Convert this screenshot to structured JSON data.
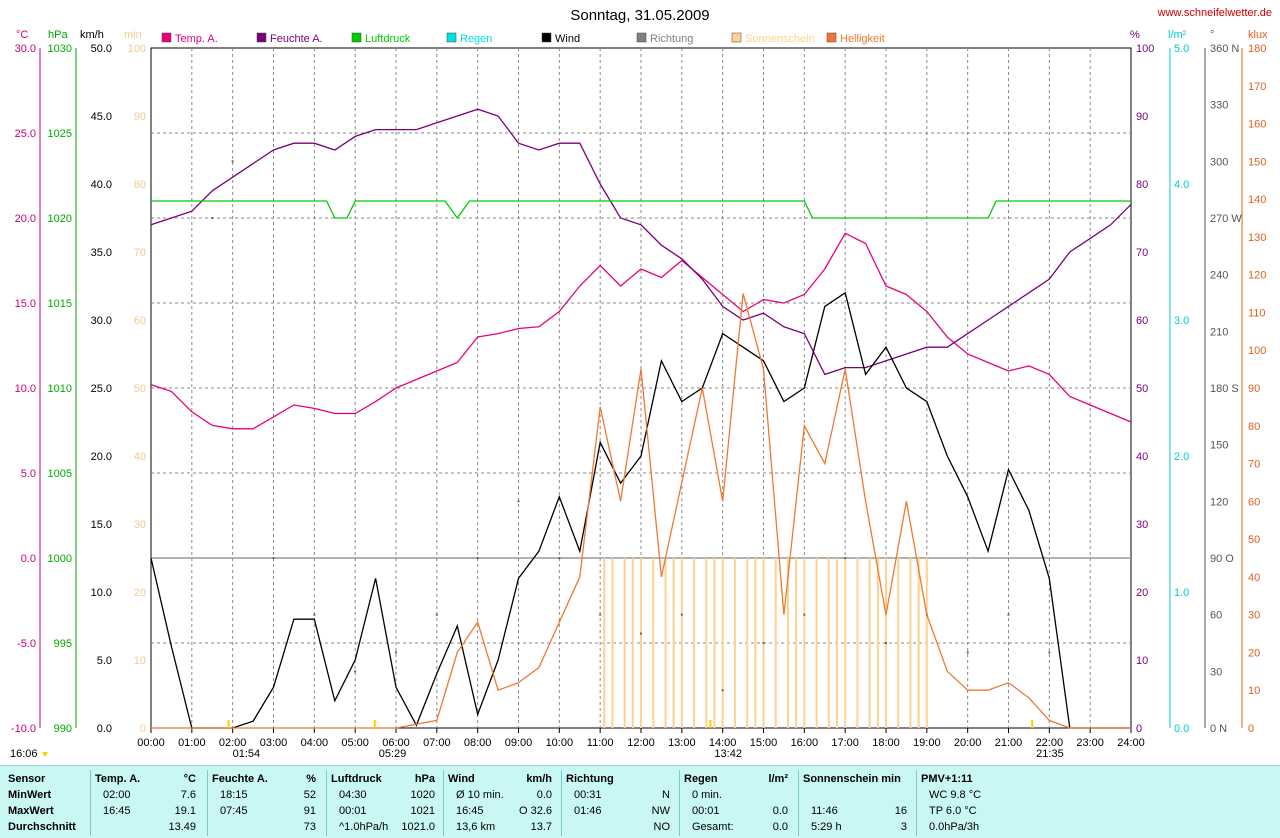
{
  "header": {
    "title": "Sonntag, 31.05.2009",
    "site": "www.schneifelwetter.de",
    "left_units": [
      "°C",
      "hPa",
      "km/h",
      "min"
    ],
    "right_units": [
      "%",
      "l/m²",
      "°",
      "klux"
    ],
    "legend": [
      {
        "label": "Temp. A.",
        "color": "#e8007a"
      },
      {
        "label": "Feuchte A.",
        "color": "#7a007a"
      },
      {
        "label": "Luftdruck",
        "color": "#00cc00"
      },
      {
        "label": "Regen",
        "color": "#00e0e0"
      },
      {
        "label": "Wind",
        "color": "#000000"
      },
      {
        "label": "Richtung",
        "color": "#808080"
      },
      {
        "label": "Sonnenschein",
        "color": "#ffd090"
      },
      {
        "label": "Helligkeit",
        "color": "#f07830"
      }
    ]
  },
  "markers": {
    "bottom_left": "16:06",
    "sunrise_low": "01:54",
    "sunrise": "05:29",
    "noon": "13:42",
    "sunset": "21:35"
  },
  "chart_data": {
    "type": "line",
    "title": "Sonntag, 31.05.2009",
    "x_ticks": [
      "00:00",
      "01:00",
      "02:00",
      "03:00",
      "04:00",
      "05:00",
      "06:00",
      "07:00",
      "08:00",
      "09:00",
      "10:00",
      "11:00",
      "12:00",
      "13:00",
      "14:00",
      "15:00",
      "16:00",
      "17:00",
      "18:00",
      "19:00",
      "20:00",
      "21:00",
      "22:00",
      "23:00",
      "24:00"
    ],
    "axes": {
      "temp_c": {
        "min": -10,
        "max": 30,
        "ticks": [
          "-10.0",
          "-5.0",
          "0.0",
          "5.0",
          "10.0",
          "15.0",
          "20.0",
          "25.0",
          "30.0"
        ],
        "color": "#cc0077"
      },
      "pressure_hpa": {
        "min": 990,
        "max": 1030,
        "ticks": [
          "990",
          "995",
          "1000",
          "1005",
          "1010",
          "1015",
          "1020",
          "1025",
          "1030"
        ],
        "color": "#00aa00"
      },
      "wind_kmh": {
        "min": 0,
        "max": 50,
        "ticks": [
          "0.0",
          "5.0",
          "10.0",
          "15.0",
          "20.0",
          "25.0",
          "30.0",
          "35.0",
          "40.0",
          "45.0",
          "50.0"
        ],
        "color": "#000000"
      },
      "sun_min": {
        "min": 0,
        "max": 100,
        "ticks": [
          "0",
          "10",
          "20",
          "30",
          "40",
          "50",
          "60",
          "70",
          "80",
          "90",
          "100"
        ],
        "color": "#f5c890"
      },
      "humidity_pct": {
        "min": 0,
        "max": 100,
        "ticks": [
          "0",
          "10",
          "20",
          "30",
          "40",
          "50",
          "60",
          "70",
          "80",
          "90",
          "100"
        ],
        "color": "#7a007a"
      },
      "rain_lm2": {
        "min": 0,
        "max": 5,
        "ticks": [
          "0.0",
          "1.0",
          "2.0",
          "3.0",
          "4.0",
          "5.0"
        ],
        "color": "#00cccc"
      },
      "direction_deg": {
        "min": 0,
        "max": 360,
        "ticks": [
          "0 N",
          "30",
          "60",
          "90 O",
          "120",
          "150",
          "180 S",
          "210",
          "240",
          "270 W",
          "300",
          "330",
          "360 N"
        ],
        "color": "#555555"
      },
      "light_klux": {
        "min": 0,
        "max": 180,
        "ticks": [
          "0",
          "10",
          "20",
          "30",
          "40",
          "50",
          "60",
          "70",
          "80",
          "90",
          "100",
          "110",
          "120",
          "130",
          "140",
          "150",
          "160",
          "170",
          "180"
        ],
        "color": "#e06020"
      }
    },
    "series": [
      {
        "name": "Temp. A.",
        "axis": "temp_c",
        "color": "#e8007a",
        "x": [
          0,
          0.5,
          1,
          1.5,
          2,
          2.5,
          3,
          3.5,
          4,
          4.5,
          5,
          5.5,
          6,
          6.5,
          7,
          7.5,
          8,
          8.5,
          9,
          9.5,
          10,
          10.5,
          11,
          11.5,
          12,
          12.5,
          13,
          13.5,
          14,
          14.5,
          15,
          15.5,
          16,
          16.5,
          17,
          17.5,
          18,
          18.5,
          19,
          19.5,
          20,
          20.5,
          21,
          21.5,
          22,
          22.5,
          23,
          23.5,
          24
        ],
        "y": [
          10.2,
          9.8,
          8.6,
          7.8,
          7.6,
          7.6,
          8.3,
          9.0,
          8.8,
          8.5,
          8.5,
          9.2,
          10.0,
          10.5,
          11.0,
          11.5,
          13.0,
          13.2,
          13.5,
          13.6,
          14.5,
          16.0,
          17.2,
          16.0,
          17.0,
          16.5,
          17.5,
          16.5,
          15.5,
          14.5,
          15.2,
          15.0,
          15.5,
          17.0,
          19.1,
          18.5,
          16.0,
          15.5,
          14.5,
          13.0,
          12.0,
          11.5,
          11.0,
          11.3,
          10.8,
          9.5,
          9.0,
          8.5,
          8.0
        ]
      },
      {
        "name": "Feuchte A.",
        "axis": "humidity_pct",
        "color": "#7a007a",
        "x": [
          0,
          0.5,
          1,
          1.5,
          2,
          2.5,
          3,
          3.5,
          4,
          4.5,
          5,
          5.5,
          6,
          6.5,
          7,
          7.5,
          8,
          8.5,
          9,
          9.5,
          10,
          10.5,
          11,
          11.5,
          12,
          12.5,
          13,
          13.5,
          14,
          14.5,
          15,
          15.5,
          16,
          16.5,
          17,
          17.5,
          18,
          18.5,
          19,
          19.5,
          20,
          20.5,
          21,
          21.5,
          22,
          22.5,
          23,
          23.5,
          24
        ],
        "y": [
          74,
          75,
          76,
          79,
          81,
          83,
          85,
          86,
          86,
          85,
          87,
          88,
          88,
          88,
          89,
          90,
          91,
          90,
          86,
          85,
          86,
          86,
          80,
          75,
          74,
          71,
          69,
          66,
          62,
          60,
          61,
          59,
          58,
          52,
          53,
          53,
          54,
          55,
          56,
          56,
          58,
          60,
          62,
          64,
          66,
          70,
          72,
          74,
          77
        ]
      },
      {
        "name": "Luftdruck",
        "axis": "pressure_hpa",
        "color": "#00cc00",
        "x": [
          0,
          4.3,
          4.5,
          4.8,
          5.0,
          7.2,
          7.5,
          7.8,
          16.0,
          16.2,
          20.5,
          20.7,
          24
        ],
        "y": [
          1021,
          1021,
          1020,
          1020,
          1021,
          1021,
          1020,
          1021,
          1021,
          1020,
          1020,
          1021,
          1021
        ]
      },
      {
        "name": "Wind",
        "axis": "wind_kmh",
        "color": "#000000",
        "x": [
          0,
          0.5,
          1,
          1.5,
          2,
          2.5,
          3,
          3.5,
          4,
          4.5,
          5,
          5.5,
          6,
          6.5,
          7,
          7.5,
          8,
          8.5,
          9,
          9.5,
          10,
          10.5,
          11,
          11.5,
          12,
          12.5,
          13,
          13.5,
          14,
          14.5,
          15,
          15.5,
          16,
          16.5,
          17,
          17.5,
          18,
          18.5,
          19,
          19.5,
          20,
          20.5,
          21,
          21.5,
          22,
          22.5,
          23,
          23.5,
          24
        ],
        "y": [
          12.5,
          6,
          0,
          0,
          0,
          0.5,
          3,
          8,
          8,
          2,
          5,
          11,
          3,
          0.2,
          4,
          7.5,
          1,
          5,
          11,
          13,
          17,
          13,
          21,
          18,
          20,
          27,
          24,
          25,
          29,
          28,
          27,
          24,
          25,
          31,
          32,
          26,
          28,
          25,
          24,
          20,
          17,
          13,
          19,
          16,
          11,
          0,
          0,
          0,
          0
        ]
      },
      {
        "name": "Helligkeit",
        "axis": "light_klux",
        "color": "#f07830",
        "x": [
          0,
          1,
          2,
          3,
          4,
          5,
          6,
          7,
          7.5,
          8,
          8.5,
          9,
          9.5,
          10,
          10.5,
          11,
          11.5,
          12,
          12.5,
          13,
          13.5,
          14,
          14.5,
          15,
          15.5,
          16,
          16.5,
          17,
          17.5,
          18,
          18.5,
          19,
          19.5,
          20,
          20.5,
          21,
          21.5,
          22,
          22.5,
          23,
          24
        ],
        "y": [
          0,
          0,
          0,
          0,
          0,
          0,
          0,
          2,
          20,
          28,
          10,
          12,
          16,
          28,
          40,
          85,
          60,
          95,
          40,
          65,
          90,
          60,
          115,
          95,
          30,
          80,
          70,
          95,
          60,
          30,
          60,
          30,
          15,
          10,
          10,
          12,
          8,
          2,
          0,
          0,
          0
        ]
      }
    ],
    "sunshine_hours": [
      11.1,
      11.3,
      11.6,
      11.8,
      12.0,
      12.3,
      12.6,
      12.8,
      13.0,
      13.3,
      13.6,
      13.8,
      14.0,
      14.3,
      14.6,
      14.8,
      15.0,
      15.3,
      15.6,
      15.8,
      16.0,
      16.3,
      16.6,
      16.8,
      17.0,
      17.3,
      17.6,
      17.8,
      18.0,
      18.3,
      18.6,
      18.8,
      19.0
    ],
    "sunshine_value": 25,
    "direction_points": {
      "x": [
        1.5,
        2.0,
        3.0,
        4.0,
        5.0,
        6.0,
        7.0,
        8.0,
        9.0,
        10.0,
        11.0,
        12.0,
        13.0,
        14.0,
        15.0,
        16.0,
        17.0,
        18.0,
        19.0,
        20.0,
        21.0,
        22.0
      ],
      "y": [
        270,
        300,
        90,
        60,
        30,
        40,
        60,
        90,
        120,
        90,
        60,
        50,
        60,
        20,
        45,
        60,
        90,
        45,
        60,
        40,
        60,
        40
      ]
    }
  },
  "stats": {
    "columns": [
      {
        "header": "Sensor",
        "unit": "",
        "rows": [
          [
            "MinWert",
            ""
          ],
          [
            "MaxWert",
            ""
          ],
          [
            "Durchschnitt",
            ""
          ]
        ]
      },
      {
        "header": "Temp. A.",
        "unit": "°C",
        "rows": [
          [
            "02:00",
            "7.6"
          ],
          [
            "16:45",
            "19.1"
          ],
          [
            "",
            "13.49"
          ]
        ]
      },
      {
        "header": "Feuchte A.",
        "unit": "%",
        "rows": [
          [
            "18:15",
            "52"
          ],
          [
            "07:45",
            "91"
          ],
          [
            "",
            "73"
          ]
        ]
      },
      {
        "header": "Luftdruck",
        "unit": "hPa",
        "rows": [
          [
            "04:30",
            "1020"
          ],
          [
            "00:01",
            "1021"
          ],
          [
            "^1.0hPa/h",
            "1021.0"
          ]
        ]
      },
      {
        "header": "Wind",
        "unit": "km/h",
        "rows": [
          [
            "Ø 10 min.",
            "0.0"
          ],
          [
            "16:45",
            "O 32.6"
          ],
          [
            "13,6 km",
            "13.7"
          ]
        ]
      },
      {
        "header": "Richtung",
        "unit": "",
        "rows": [
          [
            "00:31",
            "N"
          ],
          [
            "01:46",
            "NW"
          ],
          [
            "",
            "NO"
          ]
        ]
      },
      {
        "header": "Regen",
        "unit": "l/m²",
        "rows": [
          [
            "0 min.",
            ""
          ],
          [
            "00:01",
            "0.0"
          ],
          [
            "Gesamt:",
            "0.0"
          ]
        ]
      },
      {
        "header": "Sonnenschein min",
        "unit": "",
        "rows": [
          [
            "",
            ""
          ],
          [
            "11:46",
            "16"
          ],
          [
            "5:29 h",
            "3"
          ]
        ]
      },
      {
        "header": "PMV+1:11",
        "unit": "",
        "rows": [
          [
            "WC 9.8 °C",
            ""
          ],
          [
            "TP 6.0 °C",
            ""
          ],
          [
            "0.0hPa/3h",
            ""
          ]
        ]
      }
    ]
  }
}
